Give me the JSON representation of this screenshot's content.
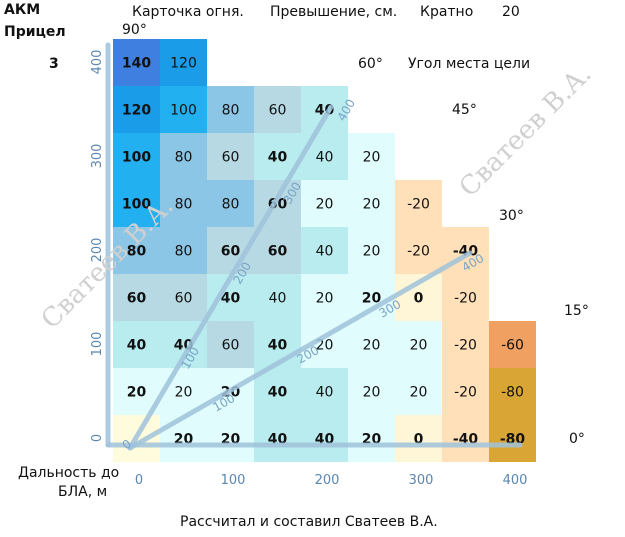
{
  "header": {
    "weapon": "АКМ",
    "card_title": "Карточка огня.",
    "excess_label": "Превышение, см.",
    "multiple_label": "Кратно",
    "multiple_value": "20",
    "sight_label": "Прицел",
    "sight_value": "3"
  },
  "angles": {
    "a90": "90°",
    "a60": "60°",
    "a45": "45°",
    "a30": "30°",
    "a15": "15°",
    "a0": "0°",
    "target_angle_label": "Угол места цели"
  },
  "axes": {
    "x_label_line1": "Дальность до",
    "x_label_line2": "БЛА, м",
    "x_ticks": [
      "0",
      "100",
      "200",
      "300",
      "400"
    ],
    "y_ticks": [
      "0",
      "100",
      "200",
      "300",
      "400"
    ]
  },
  "rays": {
    "ray_60_ticks": [
      "100",
      "200",
      "300",
      "400"
    ],
    "ray_30_ticks": [
      "100",
      "200",
      "300",
      "400"
    ]
  },
  "watermark": "Сватеев В.А.",
  "footer": "Рассчитал и составил Сватеев В.А.",
  "grid": {
    "rows": [
      [
        {
          "v": "140",
          "b": true,
          "c": "#3f7fe0"
        },
        {
          "v": "120",
          "b": false,
          "c": "#1a9ce8"
        }
      ],
      [
        {
          "v": "120",
          "b": true,
          "c": "#1a9ce8"
        },
        {
          "v": "100",
          "b": false,
          "c": "#22b0f0"
        },
        {
          "v": "80",
          "b": false,
          "c": "#8cc6e6"
        },
        {
          "v": "60",
          "b": false,
          "c": "#b7d9e3"
        },
        {
          "v": "40",
          "b": true,
          "c": "#b8ecef"
        }
      ],
      [
        {
          "v": "100",
          "b": true,
          "c": "#22b0f0"
        },
        {
          "v": "80",
          "b": false,
          "c": "#8cc6e6"
        },
        {
          "v": "60",
          "b": false,
          "c": "#b7d9e3"
        },
        {
          "v": "40",
          "b": true,
          "c": "#b8ecef"
        },
        {
          "v": "40",
          "b": false,
          "c": "#b8ecef"
        },
        {
          "v": "20",
          "b": false,
          "c": "#e0fcfc"
        }
      ],
      [
        {
          "v": "100",
          "b": true,
          "c": "#22b0f0"
        },
        {
          "v": "80",
          "b": false,
          "c": "#8cc6e6"
        },
        {
          "v": "80",
          "b": false,
          "c": "#8cc6e6"
        },
        {
          "v": "60",
          "b": true,
          "c": "#b7d9e3"
        },
        {
          "v": "20",
          "b": false,
          "c": "#e0fcfc"
        },
        {
          "v": "20",
          "b": false,
          "c": "#e0fcfc"
        },
        {
          "v": "-20",
          "b": false,
          "c": "#ffe0b8"
        }
      ],
      [
        {
          "v": "80",
          "b": true,
          "c": "#8cc6e6"
        },
        {
          "v": "80",
          "b": false,
          "c": "#8cc6e6"
        },
        {
          "v": "60",
          "b": true,
          "c": "#b7d9e3"
        },
        {
          "v": "60",
          "b": true,
          "c": "#b7d9e3"
        },
        {
          "v": "40",
          "b": false,
          "c": "#b8ecef"
        },
        {
          "v": "20",
          "b": false,
          "c": "#e0fcfc"
        },
        {
          "v": "-20",
          "b": false,
          "c": "#ffe0b8"
        },
        {
          "v": "-40",
          "b": true,
          "c": "#ffe0b8"
        }
      ],
      [
        {
          "v": "60",
          "b": true,
          "c": "#b7d9e3"
        },
        {
          "v": "60",
          "b": false,
          "c": "#b7d9e3"
        },
        {
          "v": "40",
          "b": true,
          "c": "#b8ecef"
        },
        {
          "v": "40",
          "b": false,
          "c": "#b8ecef"
        },
        {
          "v": "20",
          "b": false,
          "c": "#e0fcfc"
        },
        {
          "v": "20",
          "b": true,
          "c": "#e0fcfc"
        },
        {
          "v": "0",
          "b": true,
          "c": "#fff6d8"
        },
        {
          "v": "-20",
          "b": false,
          "c": "#ffe0b8"
        }
      ],
      [
        {
          "v": "40",
          "b": true,
          "c": "#b8ecef"
        },
        {
          "v": "40",
          "b": true,
          "c": "#b8ecef"
        },
        {
          "v": "60",
          "b": false,
          "c": "#b7d9e3"
        },
        {
          "v": "40",
          "b": true,
          "c": "#b8ecef"
        },
        {
          "v": "20",
          "b": false,
          "c": "#e0fcfc"
        },
        {
          "v": "20",
          "b": false,
          "c": "#e0fcfc"
        },
        {
          "v": "20",
          "b": false,
          "c": "#e0fcfc"
        },
        {
          "v": "-20",
          "b": false,
          "c": "#ffe0b8"
        },
        {
          "v": "-60",
          "b": false,
          "c": "#f0a060"
        }
      ],
      [
        {
          "v": "20",
          "b": true,
          "c": "#e0fcfc"
        },
        {
          "v": "20",
          "b": false,
          "c": "#e0fcfc"
        },
        {
          "v": "20",
          "b": true,
          "c": "#e0fcfc"
        },
        {
          "v": "40",
          "b": true,
          "c": "#b8ecef"
        },
        {
          "v": "40",
          "b": false,
          "c": "#b8ecef"
        },
        {
          "v": "20",
          "b": false,
          "c": "#e0fcfc"
        },
        {
          "v": "20",
          "b": false,
          "c": "#e0fcfc"
        },
        {
          "v": "-20",
          "b": false,
          "c": "#ffe0b8"
        },
        {
          "v": "-80",
          "b": false,
          "c": "#d9a635"
        }
      ],
      [
        {
          "v": "",
          "b": false,
          "c": "#fffcdd"
        },
        {
          "v": "20",
          "b": true,
          "c": "#e0fcfc"
        },
        {
          "v": "20",
          "b": true,
          "c": "#e0fcfc"
        },
        {
          "v": "40",
          "b": true,
          "c": "#b8ecef"
        },
        {
          "v": "40",
          "b": true,
          "c": "#b8ecef"
        },
        {
          "v": "20",
          "b": true,
          "c": "#e0fcfc"
        },
        {
          "v": "0",
          "b": true,
          "c": "#fff6d8"
        },
        {
          "v": "-40",
          "b": true,
          "c": "#ffe0b8"
        },
        {
          "v": "-80",
          "b": true,
          "c": "#d9a635"
        }
      ]
    ]
  }
}
